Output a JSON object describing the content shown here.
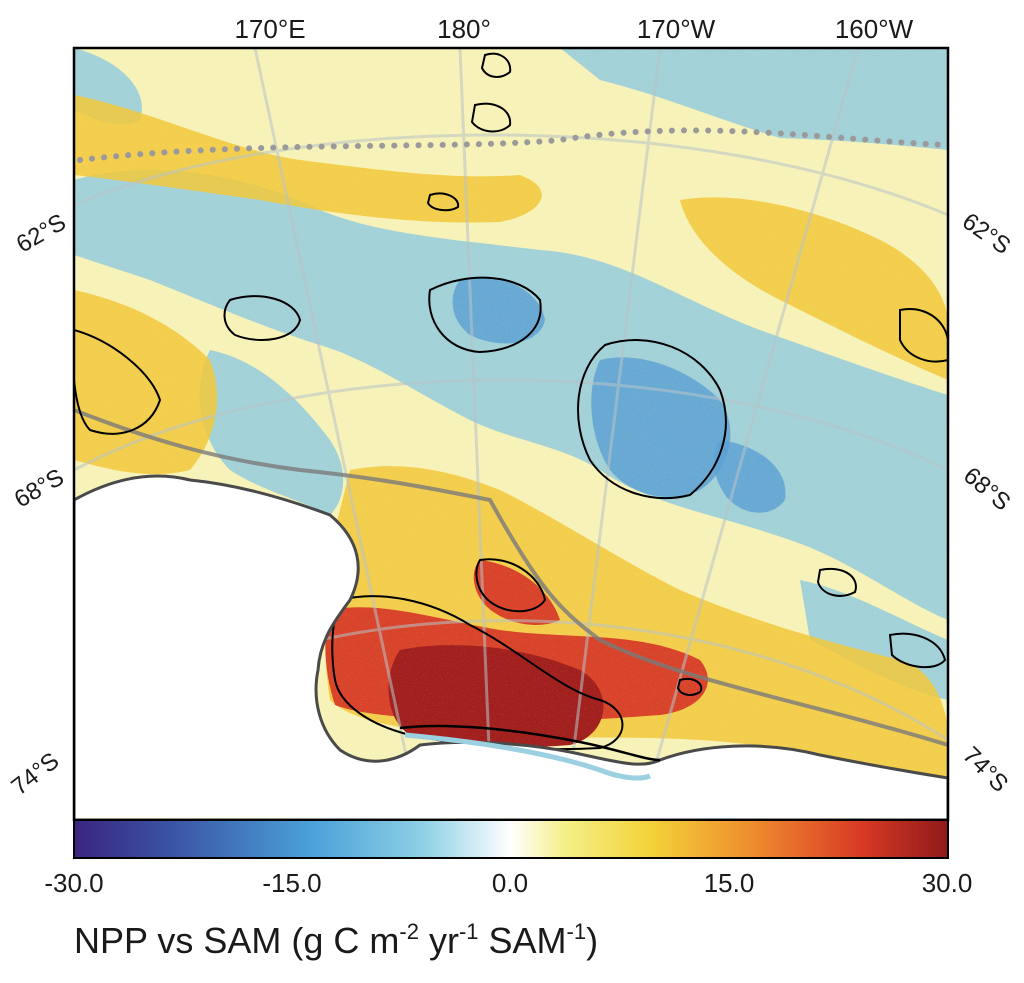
{
  "lon_labels": [
    "170°E",
    "180°",
    "170°W",
    "160°W"
  ],
  "lat_labels_left": [
    "62°S",
    "68°S",
    "74°S"
  ],
  "lat_labels_right": [
    "62°S",
    "68°S",
    "74°S"
  ],
  "colorbar": {
    "ticks": [
      "-30.0",
      "-15.0",
      "0.0",
      "15.0",
      "30.0"
    ],
    "min": -30.0,
    "max": 30.0,
    "colors": [
      "#3a2580",
      "#3a53a4",
      "#4aa0d8",
      "#8ed0e6",
      "#ffffff",
      "#f5f08a",
      "#f3d238",
      "#ee8a2e",
      "#d93a24",
      "#8f1a1a"
    ]
  },
  "title": {
    "main": "NPP vs SAM (g C m",
    "sup1": "-2",
    "mid": " yr",
    "sup2": "-1",
    "mid2": " SAM",
    "sup3": "-1",
    "end": ")"
  },
  "map_colors": {
    "positive_low": "#f7ef86",
    "positive_mid": "#f2c83a",
    "positive_high": "#d8432a",
    "positive_max": "#a11f1c",
    "negative_low": "#bfe2ef",
    "negative_mid": "#86c6e2",
    "negative_high": "#5a9fd3",
    "land": "#ffffff",
    "coastline": "#555555",
    "contour": "#000000",
    "graticule": "#b8c4c8"
  }
}
